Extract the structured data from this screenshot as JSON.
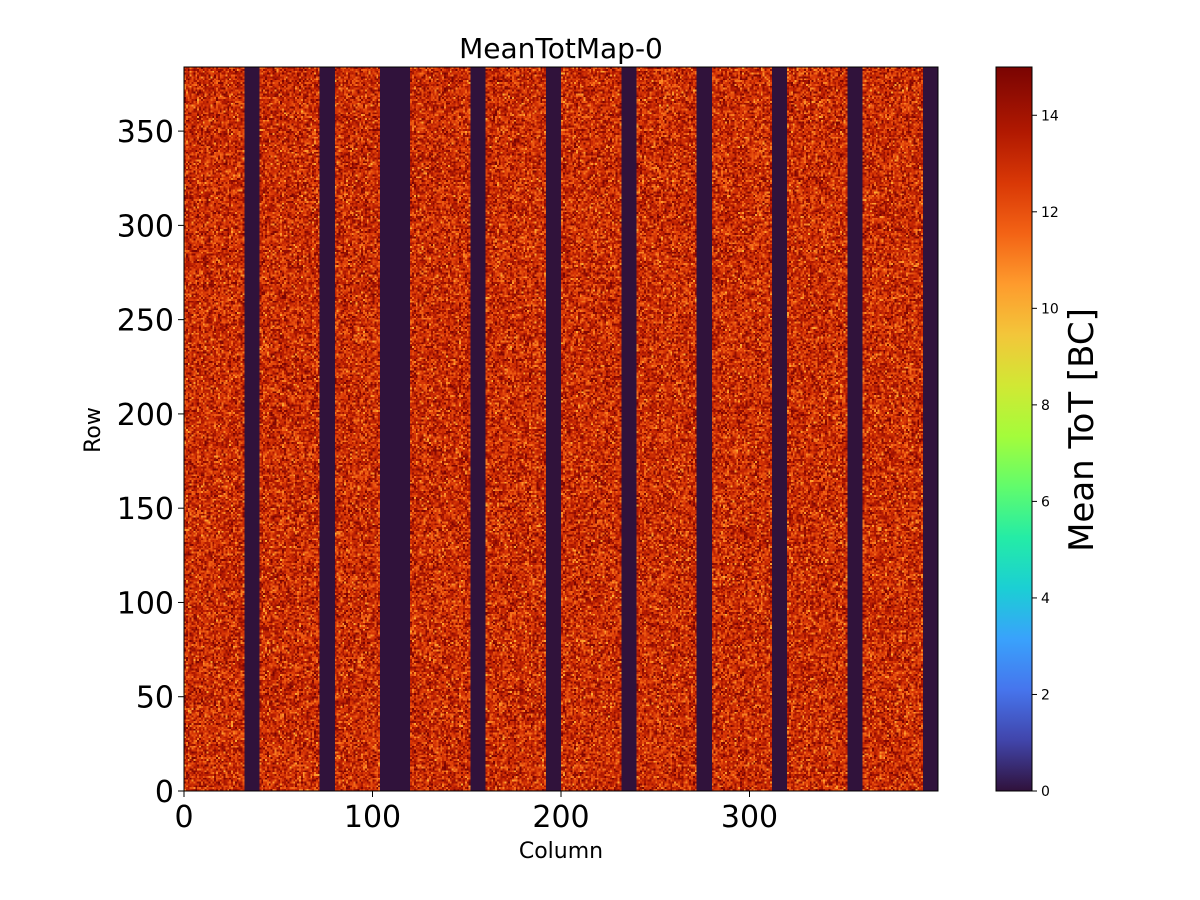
{
  "chart_data": {
    "type": "heatmap",
    "title": "MeanTotMap-0",
    "xlabel": "Column",
    "ylabel": "Row",
    "xlim": [
      0,
      400
    ],
    "ylim": [
      0,
      384
    ],
    "x_ticks": [
      0,
      100,
      200,
      300
    ],
    "y_ticks": [
      0,
      50,
      100,
      150,
      200,
      250,
      300,
      350
    ],
    "colorbar": {
      "label": "Mean ToT [BC]",
      "range": [
        0,
        15
      ],
      "ticks": [
        0,
        2,
        4,
        6,
        8,
        10,
        12,
        14
      ],
      "colormap": "turbo"
    },
    "grid": false,
    "typical_active_value": 13,
    "active_value_spread": [
      11,
      15
    ],
    "dead_column_value": 0,
    "dead_column_ranges": [
      [
        32,
        40
      ],
      [
        72,
        80
      ],
      [
        104,
        120
      ],
      [
        152,
        160
      ],
      [
        192,
        200
      ],
      [
        232,
        240
      ],
      [
        272,
        280
      ],
      [
        312,
        320
      ],
      [
        352,
        360
      ],
      [
        392,
        400
      ]
    ]
  }
}
